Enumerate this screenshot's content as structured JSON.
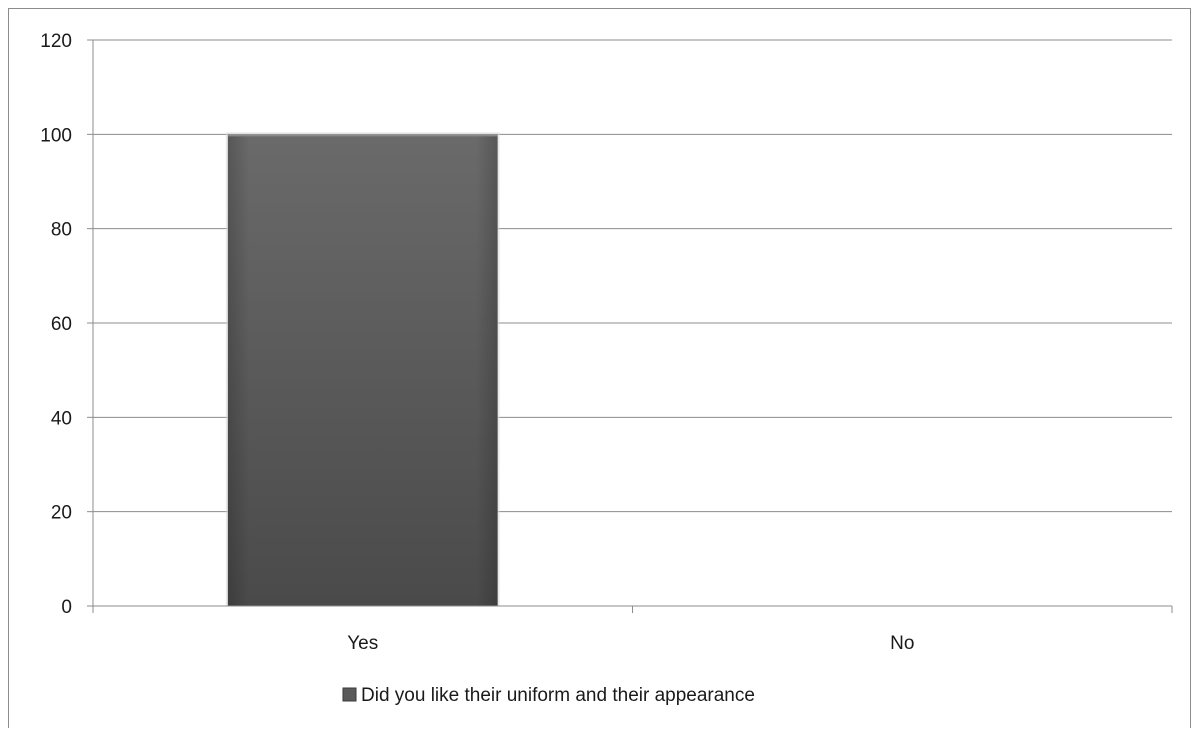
{
  "chart_data": {
    "type": "bar",
    "categories": [
      "Yes",
      "No"
    ],
    "series": [
      {
        "name": "Did you like their uniform and their appearance",
        "values": [
          100,
          0
        ]
      }
    ],
    "ylim": [
      0,
      120
    ],
    "yticks": [
      0,
      20,
      40,
      60,
      80,
      100,
      120
    ],
    "grid": true,
    "legend_position": "bottom",
    "bar_color": "#5a5a5a",
    "bar_gradient_top": "#6a6a6a",
    "bar_gradient_bottom": "#4a4a4a",
    "gridline_color": "#8c8c8c",
    "axis_color": "#8c8c8c"
  }
}
